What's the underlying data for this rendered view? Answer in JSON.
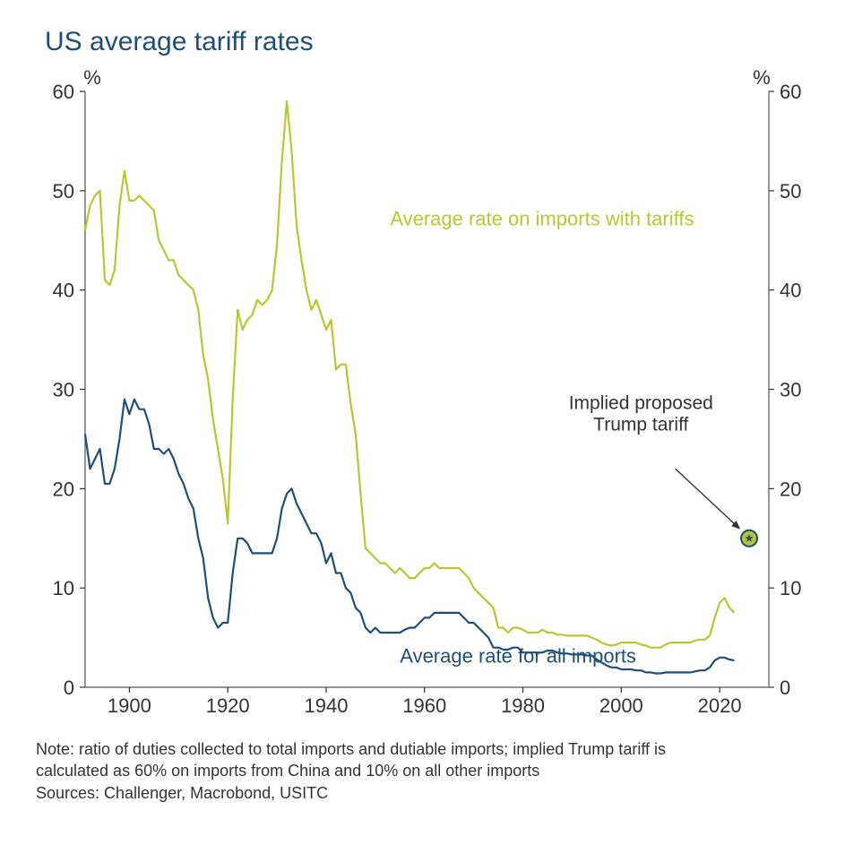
{
  "title": "US average tariff rates",
  "axis_unit_left": "%",
  "axis_unit_right": "%",
  "chart": {
    "type": "line",
    "xlim": [
      1891,
      2030
    ],
    "ylim": [
      0,
      60
    ],
    "xticks": [
      1900,
      1920,
      1940,
      1960,
      1980,
      2000,
      2020
    ],
    "yticks": [
      0,
      10,
      20,
      30,
      40,
      50,
      60
    ],
    "axis_color": "#333333",
    "tick_color": "#333333",
    "tick_fontsize": 22,
    "title_fontsize": 30,
    "title_color": "#1f4e79",
    "background_color": "#ffffff",
    "plot_border_color": "#555555",
    "line_width": 2.2,
    "series": {
      "dutiable": {
        "label": "Average rate on imports with tariffs",
        "color": "#b8c72f",
        "label_pos_x": 1953,
        "label_pos_y": 46.5,
        "data": [
          [
            1891,
            46
          ],
          [
            1892,
            48.5
          ],
          [
            1893,
            49.5
          ],
          [
            1894,
            50
          ],
          [
            1895,
            41
          ],
          [
            1896,
            40.5
          ],
          [
            1897,
            42
          ],
          [
            1898,
            48.5
          ],
          [
            1899,
            52
          ],
          [
            1900,
            49
          ],
          [
            1901,
            49
          ],
          [
            1902,
            49.5
          ],
          [
            1903,
            49
          ],
          [
            1904,
            48.5
          ],
          [
            1905,
            48
          ],
          [
            1906,
            45
          ],
          [
            1907,
            44
          ],
          [
            1908,
            43
          ],
          [
            1909,
            43
          ],
          [
            1910,
            41.5
          ],
          [
            1911,
            41
          ],
          [
            1912,
            40.5
          ],
          [
            1913,
            40
          ],
          [
            1914,
            38
          ],
          [
            1915,
            33.5
          ],
          [
            1916,
            31
          ],
          [
            1917,
            27
          ],
          [
            1918,
            24
          ],
          [
            1919,
            21
          ],
          [
            1920,
            16.5
          ],
          [
            1921,
            29
          ],
          [
            1922,
            38
          ],
          [
            1923,
            36
          ],
          [
            1924,
            37
          ],
          [
            1925,
            37.5
          ],
          [
            1926,
            39
          ],
          [
            1927,
            38.5
          ],
          [
            1928,
            39
          ],
          [
            1929,
            40
          ],
          [
            1930,
            44.5
          ],
          [
            1931,
            53
          ],
          [
            1932,
            59
          ],
          [
            1933,
            54
          ],
          [
            1934,
            46.5
          ],
          [
            1935,
            43
          ],
          [
            1936,
            40
          ],
          [
            1937,
            38
          ],
          [
            1938,
            39
          ],
          [
            1939,
            37.5
          ],
          [
            1940,
            36
          ],
          [
            1941,
            37
          ],
          [
            1942,
            32
          ],
          [
            1943,
            32.5
          ],
          [
            1944,
            32.5
          ],
          [
            1945,
            28.5
          ],
          [
            1946,
            25.5
          ],
          [
            1947,
            19.5
          ],
          [
            1948,
            14
          ],
          [
            1949,
            13.5
          ],
          [
            1950,
            13
          ],
          [
            1951,
            12.5
          ],
          [
            1952,
            12.5
          ],
          [
            1953,
            12
          ],
          [
            1954,
            11.5
          ],
          [
            1955,
            12
          ],
          [
            1956,
            11.5
          ],
          [
            1957,
            11
          ],
          [
            1958,
            11
          ],
          [
            1959,
            11.5
          ],
          [
            1960,
            12
          ],
          [
            1961,
            12
          ],
          [
            1962,
            12.5
          ],
          [
            1963,
            12
          ],
          [
            1964,
            12
          ],
          [
            1965,
            12
          ],
          [
            1966,
            12
          ],
          [
            1967,
            12
          ],
          [
            1968,
            11.5
          ],
          [
            1969,
            11
          ],
          [
            1970,
            10
          ],
          [
            1971,
            9.5
          ],
          [
            1972,
            9
          ],
          [
            1973,
            8.5
          ],
          [
            1974,
            8
          ],
          [
            1975,
            6
          ],
          [
            1976,
            6
          ],
          [
            1977,
            5.5
          ],
          [
            1978,
            6
          ],
          [
            1979,
            6
          ],
          [
            1980,
            5.8
          ],
          [
            1981,
            5.5
          ],
          [
            1982,
            5.5
          ],
          [
            1983,
            5.5
          ],
          [
            1984,
            5.8
          ],
          [
            1985,
            5.5
          ],
          [
            1986,
            5.5
          ],
          [
            1987,
            5.3
          ],
          [
            1988,
            5.3
          ],
          [
            1989,
            5.2
          ],
          [
            1990,
            5.2
          ],
          [
            1991,
            5.2
          ],
          [
            1992,
            5.2
          ],
          [
            1993,
            5.2
          ],
          [
            1994,
            5
          ],
          [
            1995,
            4.8
          ],
          [
            1996,
            4.5
          ],
          [
            1997,
            4.3
          ],
          [
            1998,
            4.2
          ],
          [
            1999,
            4.3
          ],
          [
            2000,
            4.5
          ],
          [
            2001,
            4.5
          ],
          [
            2002,
            4.5
          ],
          [
            2003,
            4.5
          ],
          [
            2004,
            4.3
          ],
          [
            2005,
            4.2
          ],
          [
            2006,
            4
          ],
          [
            2007,
            4
          ],
          [
            2008,
            4
          ],
          [
            2009,
            4.3
          ],
          [
            2010,
            4.5
          ],
          [
            2011,
            4.5
          ],
          [
            2012,
            4.5
          ],
          [
            2013,
            4.5
          ],
          [
            2014,
            4.5
          ],
          [
            2015,
            4.7
          ],
          [
            2016,
            4.8
          ],
          [
            2017,
            4.8
          ],
          [
            2018,
            5.2
          ],
          [
            2019,
            7
          ],
          [
            2020,
            8.5
          ],
          [
            2021,
            9
          ],
          [
            2022,
            8
          ],
          [
            2023,
            7.5
          ]
        ]
      },
      "all": {
        "label": "Average rate for all imports",
        "color": "#1f4e79",
        "label_pos_x": 1955,
        "label_pos_y": 2.5,
        "data": [
          [
            1891,
            25.5
          ],
          [
            1892,
            22
          ],
          [
            1893,
            23
          ],
          [
            1894,
            24
          ],
          [
            1895,
            20.5
          ],
          [
            1896,
            20.5
          ],
          [
            1897,
            22
          ],
          [
            1898,
            25
          ],
          [
            1899,
            29
          ],
          [
            1900,
            27.5
          ],
          [
            1901,
            29
          ],
          [
            1902,
            28
          ],
          [
            1903,
            28
          ],
          [
            1904,
            26.5
          ],
          [
            1905,
            24
          ],
          [
            1906,
            24
          ],
          [
            1907,
            23.5
          ],
          [
            1908,
            24
          ],
          [
            1909,
            23
          ],
          [
            1910,
            21.5
          ],
          [
            1911,
            20.5
          ],
          [
            1912,
            19
          ],
          [
            1913,
            18
          ],
          [
            1914,
            15
          ],
          [
            1915,
            13
          ],
          [
            1916,
            9
          ],
          [
            1917,
            7
          ],
          [
            1918,
            6
          ],
          [
            1919,
            6.5
          ],
          [
            1920,
            6.5
          ],
          [
            1921,
            11.5
          ],
          [
            1922,
            15
          ],
          [
            1923,
            15
          ],
          [
            1924,
            14.5
          ],
          [
            1925,
            13.5
          ],
          [
            1926,
            13.5
          ],
          [
            1927,
            13.5
          ],
          [
            1928,
            13.5
          ],
          [
            1929,
            13.5
          ],
          [
            1930,
            15
          ],
          [
            1931,
            18
          ],
          [
            1932,
            19.5
          ],
          [
            1933,
            20
          ],
          [
            1934,
            18.5
          ],
          [
            1935,
            17.5
          ],
          [
            1936,
            16.5
          ],
          [
            1937,
            15.5
          ],
          [
            1938,
            15.5
          ],
          [
            1939,
            14.5
          ],
          [
            1940,
            12.5
          ],
          [
            1941,
            13.5
          ],
          [
            1942,
            11.5
          ],
          [
            1943,
            11.5
          ],
          [
            1944,
            10
          ],
          [
            1945,
            9.5
          ],
          [
            1946,
            8
          ],
          [
            1947,
            7.5
          ],
          [
            1948,
            6
          ],
          [
            1949,
            5.5
          ],
          [
            1950,
            6
          ],
          [
            1951,
            5.5
          ],
          [
            1952,
            5.5
          ],
          [
            1953,
            5.5
          ],
          [
            1954,
            5.5
          ],
          [
            1955,
            5.5
          ],
          [
            1956,
            5.8
          ],
          [
            1957,
            6
          ],
          [
            1958,
            6
          ],
          [
            1959,
            6.5
          ],
          [
            1960,
            7
          ],
          [
            1961,
            7
          ],
          [
            1962,
            7.5
          ],
          [
            1963,
            7.5
          ],
          [
            1964,
            7.5
          ],
          [
            1965,
            7.5
          ],
          [
            1966,
            7.5
          ],
          [
            1967,
            7.5
          ],
          [
            1968,
            7
          ],
          [
            1969,
            6.5
          ],
          [
            1970,
            6.5
          ],
          [
            1971,
            6
          ],
          [
            1972,
            5.5
          ],
          [
            1973,
            5
          ],
          [
            1974,
            4
          ],
          [
            1975,
            4
          ],
          [
            1976,
            3.8
          ],
          [
            1977,
            3.8
          ],
          [
            1978,
            4
          ],
          [
            1979,
            4
          ],
          [
            1980,
            3.5
          ],
          [
            1981,
            3.5
          ],
          [
            1982,
            3.5
          ],
          [
            1983,
            3.5
          ],
          [
            1984,
            3.5
          ],
          [
            1985,
            3.7
          ],
          [
            1986,
            3.7
          ],
          [
            1987,
            3.5
          ],
          [
            1988,
            3.4
          ],
          [
            1989,
            3.4
          ],
          [
            1990,
            3.3
          ],
          [
            1991,
            3.3
          ],
          [
            1992,
            3.3
          ],
          [
            1993,
            3.2
          ],
          [
            1994,
            3.2
          ],
          [
            1995,
            2.8
          ],
          [
            1996,
            2.5
          ],
          [
            1997,
            2.2
          ],
          [
            1998,
            2
          ],
          [
            1999,
            2
          ],
          [
            2000,
            1.8
          ],
          [
            2001,
            1.8
          ],
          [
            2002,
            1.8
          ],
          [
            2003,
            1.7
          ],
          [
            2004,
            1.7
          ],
          [
            2005,
            1.5
          ],
          [
            2006,
            1.5
          ],
          [
            2007,
            1.4
          ],
          [
            2008,
            1.4
          ],
          [
            2009,
            1.5
          ],
          [
            2010,
            1.5
          ],
          [
            2011,
            1.5
          ],
          [
            2012,
            1.5
          ],
          [
            2013,
            1.5
          ],
          [
            2014,
            1.5
          ],
          [
            2015,
            1.6
          ],
          [
            2016,
            1.7
          ],
          [
            2017,
            1.7
          ],
          [
            2018,
            2
          ],
          [
            2019,
            2.7
          ],
          [
            2020,
            3
          ],
          [
            2021,
            3
          ],
          [
            2022,
            2.8
          ],
          [
            2023,
            2.7
          ]
        ]
      }
    },
    "annotation": {
      "text_line1": "Implied proposed",
      "text_line2": "Trump tariff",
      "text_pos_x": 2004,
      "text_pos_y": 28,
      "arrow_from_x": 2011,
      "arrow_from_y": 22,
      "arrow_to_x": 2024,
      "arrow_to_y": 16,
      "point_x": 2026,
      "point_y": 15,
      "point_fill": "#b8c72f",
      "point_stroke": "#1f4e79",
      "star_fill": "#1f4e79",
      "arrow_color": "#333333"
    }
  },
  "footnote_line1": "Note: ratio of duties collected to total imports and dutiable imports; implied Trump tariff is",
  "footnote_line2": "calculated as 60% on imports from China and 10% on all other imports",
  "footnote_line3": "Sources: Challenger, Macrobond, USITC"
}
